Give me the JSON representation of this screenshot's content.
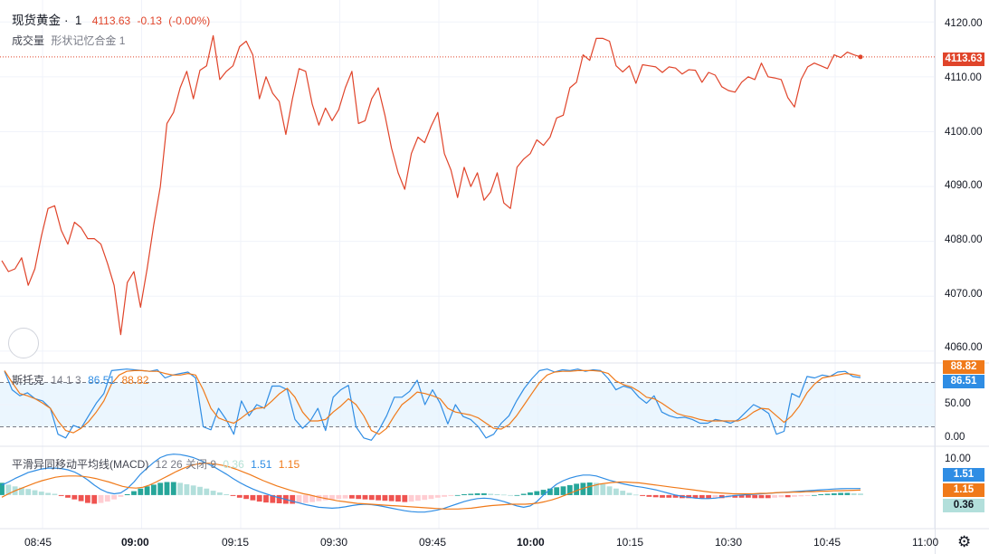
{
  "header": {
    "symbol": "现货黄金",
    "dot": "·",
    "interval": "1",
    "price": "4113.63",
    "change": "-0.13",
    "change_pct": "(-0.00%)",
    "volume_label": "成交量",
    "volume_sub": "形状记忆合金 1"
  },
  "stoch_legend": {
    "name": "斯托克",
    "params": "14 1 3",
    "k": "86.51",
    "d": "88.82"
  },
  "macd_legend": {
    "name": "平滑异同移动平均线(MACD)",
    "params": "12 26 关闭 9",
    "hist": "0.36",
    "macd": "1.51",
    "signal": "1.15"
  },
  "tags": {
    "price": "4113.63",
    "stoch_d": "88.82",
    "stoch_k": "86.51",
    "macd": "1.51",
    "signal": "1.15",
    "hist": "0.36"
  },
  "colors": {
    "price_line": "#e0442a",
    "stoch_k": "#2f8de4",
    "stoch_d": "#f07a1a",
    "hist_pos_strong": "#26a69a",
    "hist_pos_weak": "#b2dfdb",
    "hist_neg_strong": "#ef5350",
    "hist_neg_weak": "#ffcdd2"
  },
  "x_tick_labels": [
    "08:45",
    "09:00",
    "09:15",
    "09:30",
    "09:45",
    "10:00",
    "10:15",
    "10:30",
    "10:45",
    "11:00"
  ],
  "chart_data": [
    {
      "type": "line",
      "title": "现货黄金 · 1",
      "y_ticks": [
        "4120.00",
        "4110.00",
        "4100.00",
        "4090.00",
        "4080.00",
        "4070.00",
        "4060.00"
      ],
      "ylim": [
        4058,
        4124
      ],
      "x_range_minutes": [
        0,
        153
      ],
      "last_value": 4113.63,
      "series": [
        {
          "values": [
            4076.5,
            4074.5,
            4075,
            4077,
            4072,
            4075,
            4081,
            4086,
            4086.5,
            4082,
            4079.5,
            4083.5,
            4082.5,
            4080.5,
            4080.5,
            4079.5,
            4076,
            4072,
            4063,
            4072.5,
            4074.5,
            4068,
            4075,
            4083,
            4090,
            4101.5,
            4103.5,
            4108,
            4111,
            4106,
            4111.2,
            4112,
            4117.5,
            4109.5,
            4111,
            4112,
            4115.5,
            4116.5,
            4114,
            4106,
            4110,
            4107,
            4105.5,
            4099.5,
            4106,
            4111.5,
            4111,
            4105,
            4101.2,
            4104.3,
            4102,
            4104,
            4108,
            4111,
            4101.5,
            4102,
            4106,
            4108,
            4103,
            4097,
            4092.5,
            4089.5,
            4096,
            4099,
            4098,
            4101,
            4103.5,
            4096,
            4093,
            4088,
            4093.5,
            4090,
            4092.5,
            4087.5,
            4089,
            4092.5,
            4087,
            4086,
            4093.5,
            4095,
            4096,
            4098.5,
            4097.5,
            4099,
            4102.5,
            4103,
            4108,
            4109,
            4114,
            4113,
            4117,
            4117,
            4116.5,
            4112,
            4110.9,
            4112,
            4108.8,
            4112.2,
            4112,
            4111.8,
            4110.8,
            4111.8,
            4111.6,
            4110.5,
            4111.3,
            4111.2,
            4109,
            4110.8,
            4110.3,
            4108.2,
            4107.5,
            4107.2,
            4109,
            4110,
            4109.5,
            4112.5,
            4110,
            4109.8,
            4109.5,
            4106.2,
            4104.5,
            4109.5,
            4111.8,
            4112.5,
            4112,
            4111.5,
            4114,
            4113.5,
            4114.5,
            4114,
            4113.63
          ]
        }
      ]
    },
    {
      "type": "line",
      "title": "斯托克 14 1 3",
      "y_ticks": [
        "50.00",
        "0.00"
      ],
      "ylim": [
        -5,
        105
      ],
      "bands": [
        20,
        80
      ],
      "series": [
        {
          "name": "86.51",
          "values": [
            95,
            70,
            62,
            66,
            58,
            55,
            45,
            10,
            5,
            22,
            18,
            35,
            52,
            65,
            96,
            97,
            98,
            97,
            96,
            95,
            97,
            86,
            90,
            92,
            94,
            86,
            20,
            16,
            45,
            30,
            10,
            55,
            35,
            50,
            45,
            75,
            75,
            70,
            30,
            18,
            28,
            45,
            15,
            60,
            70,
            76,
            20,
            5,
            2,
            16,
            35,
            60,
            60,
            68,
            83,
            50,
            70,
            52,
            24,
            50,
            34,
            30,
            20,
            5,
            10,
            25,
            35,
            55,
            72,
            85,
            96,
            98,
            94,
            97,
            96,
            98,
            95,
            97,
            96,
            85,
            70,
            75,
            72,
            60,
            52,
            62,
            40,
            35,
            32,
            33,
            30,
            25,
            25,
            30,
            28,
            25,
            30,
            40,
            50,
            45,
            38,
            10,
            14,
            65,
            60,
            88,
            86,
            90,
            88,
            94,
            95,
            88,
            86.51
          ]
        },
        {
          "name": "88.82",
          "values": [
            96,
            80,
            65,
            62,
            58,
            52,
            45,
            28,
            15,
            12,
            18,
            27,
            40,
            55,
            78,
            90,
            95,
            96,
            96,
            95,
            95,
            92,
            90,
            90,
            92,
            90,
            70,
            45,
            32,
            28,
            25,
            32,
            40,
            45,
            46,
            55,
            65,
            72,
            60,
            40,
            28,
            28,
            30,
            40,
            48,
            58,
            50,
            35,
            15,
            10,
            18,
            35,
            50,
            58,
            67,
            65,
            62,
            58,
            45,
            40,
            38,
            36,
            32,
            25,
            18,
            17,
            23,
            35,
            50,
            65,
            80,
            90,
            94,
            95,
            95,
            96,
            96,
            96,
            95,
            92,
            82,
            77,
            74,
            68,
            60,
            58,
            52,
            45,
            38,
            35,
            33,
            30,
            28,
            28,
            28,
            28,
            28,
            32,
            40,
            45,
            44,
            35,
            26,
            35,
            48,
            66,
            78,
            86,
            88,
            90,
            92,
            91,
            88.82
          ]
        }
      ]
    },
    {
      "type": "bar",
      "title": "平滑异同移动平均线(MACD) 12 26 关闭 9",
      "y_ticks": [
        "10.00"
      ],
      "ylim": [
        -7.5,
        11
      ],
      "series": [
        {
          "name": "0.36",
          "type": "histogram",
          "values": [
            2.8,
            2.4,
            2,
            1.7,
            1.4,
            1.1,
            0.8,
            0.5,
            0.3,
            -0.2,
            -0.6,
            -1,
            -1.4,
            -1.8,
            -2,
            -1.8,
            -1.5,
            -1,
            -0.4,
            0.2,
            0.9,
            1.5,
            2,
            2.4,
            2.8,
            3,
            3,
            2.8,
            2.5,
            2.2,
            1.9,
            1.5,
            1,
            0.6,
            0.2,
            -0.2,
            -0.6,
            -0.9,
            -1.2,
            -1.5,
            -1.7,
            -1.8,
            -1.9,
            -2,
            -2,
            -1.9,
            -1.8,
            -1.6,
            -1.4,
            -1.2,
            -1,
            -0.9,
            -0.8,
            -0.8,
            -0.9,
            -1,
            -1.1,
            -1.2,
            -1.3,
            -1.4,
            -1.5,
            -1.6,
            -1.5,
            -1.3,
            -1.1,
            -0.9,
            -0.6,
            -0.4,
            -0.2,
            0,
            0.2,
            0.3,
            0.4,
            0.4,
            0.3,
            0.2,
            0.1,
            0,
            0,
            0.3,
            0.6,
            0.9,
            1.2,
            1.5,
            1.8,
            2,
            2.3,
            2.6,
            2.8,
            2.9,
            2.8,
            2.5,
            2,
            1.5,
            1,
            0.5,
            0.1,
            -0.2,
            -0.4,
            -0.5,
            -0.6,
            -0.6,
            -0.6,
            -0.7,
            -0.7,
            -0.7,
            -0.8,
            -0.8,
            -0.7,
            -0.7,
            -0.6,
            -0.6,
            -0.6,
            -0.6,
            -0.7,
            -0.7,
            -0.7,
            -0.6,
            -0.5,
            -0.5,
            -0.4,
            -0.3,
            -0.2,
            0,
            0.2,
            0.3,
            0.4,
            0.5,
            0.5,
            0.4,
            0.36
          ]
        },
        {
          "name": "1.51",
          "type": "line",
          "values": [
            2.3,
            3,
            3.8,
            4.5,
            5.2,
            5.6,
            6,
            6.2,
            6.2,
            6.1,
            5.8,
            5.3,
            4.5,
            3.5,
            2.3,
            1.3,
            0.6,
            0.3,
            0.5,
            1.5,
            3,
            4.8,
            6.2,
            7.5,
            8.6,
            9.2,
            9.4,
            9.3,
            9,
            8.6,
            8,
            7.3,
            6.6,
            5.7,
            4.8,
            3.8,
            2.9,
            2.1,
            1.4,
            0.8,
            0.3,
            -0.2,
            -0.6,
            -1,
            -1.4,
            -1.8,
            -2.2,
            -2.5,
            -2.8,
            -2.9,
            -3,
            -2.9,
            -2.7,
            -2.4,
            -2.2,
            -2.1,
            -2.2,
            -2.4,
            -2.7,
            -3,
            -3.3,
            -3.6,
            -3.8,
            -3.9,
            -3.9,
            -3.7,
            -3.4,
            -3,
            -2.5,
            -2,
            -1.5,
            -1.1,
            -0.8,
            -0.7,
            -0.8,
            -1.1,
            -1.5,
            -2,
            -2.5,
            -2.8,
            -2.5,
            -1.5,
            0,
            1.3,
            2.5,
            3.3,
            3.9,
            4.3,
            4.6,
            4.6,
            4.4,
            3.9,
            3.4,
            3,
            2.6,
            2.3,
            2,
            1.8,
            1.5,
            1.2,
            0.8,
            0.4,
            0,
            -0.3,
            -0.5,
            -0.7,
            -0.8,
            -0.8,
            -0.7,
            -0.5,
            -0.3,
            -0.1,
            0,
            0.1,
            0.2,
            0.3,
            0.4,
            0.5,
            0.6,
            0.7,
            0.8,
            0.9,
            1,
            1.1,
            1.2,
            1.3,
            1.4,
            1.45,
            1.5,
            1.5,
            1.51
          ]
        },
        {
          "name": "1.15",
          "type": "line",
          "values": [
            -0.5,
            0.3,
            1,
            1.6,
            2.2,
            2.8,
            3.3,
            3.7,
            4.1,
            4.3,
            4.4,
            4.4,
            4.3,
            4.1,
            3.8,
            3.4,
            3,
            2.5,
            2,
            1.7,
            1.6,
            1.8,
            2.3,
            3,
            3.8,
            4.6,
            5.4,
            6.1,
            6.7,
            7.1,
            7.3,
            7.3,
            7.1,
            6.8,
            6.4,
            5.9,
            5.3,
            4.7,
            4,
            3.3,
            2.7,
            2.1,
            1.6,
            1.1,
            0.7,
            0.3,
            0,
            -0.4,
            -0.7,
            -1,
            -1.3,
            -1.5,
            -1.7,
            -1.9,
            -2,
            -2.1,
            -2.2,
            -2.3,
            -2.4,
            -2.5,
            -2.6,
            -2.7,
            -2.8,
            -2.9,
            -3,
            -3.1,
            -3.2,
            -3.2,
            -3.2,
            -3.1,
            -3,
            -2.8,
            -2.6,
            -2.4,
            -2.3,
            -2.2,
            -2.1,
            -2.1,
            -2.1,
            -2,
            -1.8,
            -1.5,
            -1.1,
            -0.6,
            0,
            0.6,
            1.2,
            1.7,
            2.1,
            2.5,
            2.7,
            2.9,
            3,
            3,
            2.9,
            2.8,
            2.6,
            2.4,
            2.2,
            2,
            1.8,
            1.6,
            1.4,
            1.2,
            1,
            0.8,
            0.6,
            0.5,
            0.4,
            0.3,
            0.3,
            0.3,
            0.3,
            0.4,
            0.4,
            0.5,
            0.6,
            0.6,
            0.7,
            0.7,
            0.8,
            0.8,
            0.9,
            0.9,
            1,
            1,
            1.05,
            1.1,
            1.15
          ]
        }
      ]
    }
  ]
}
